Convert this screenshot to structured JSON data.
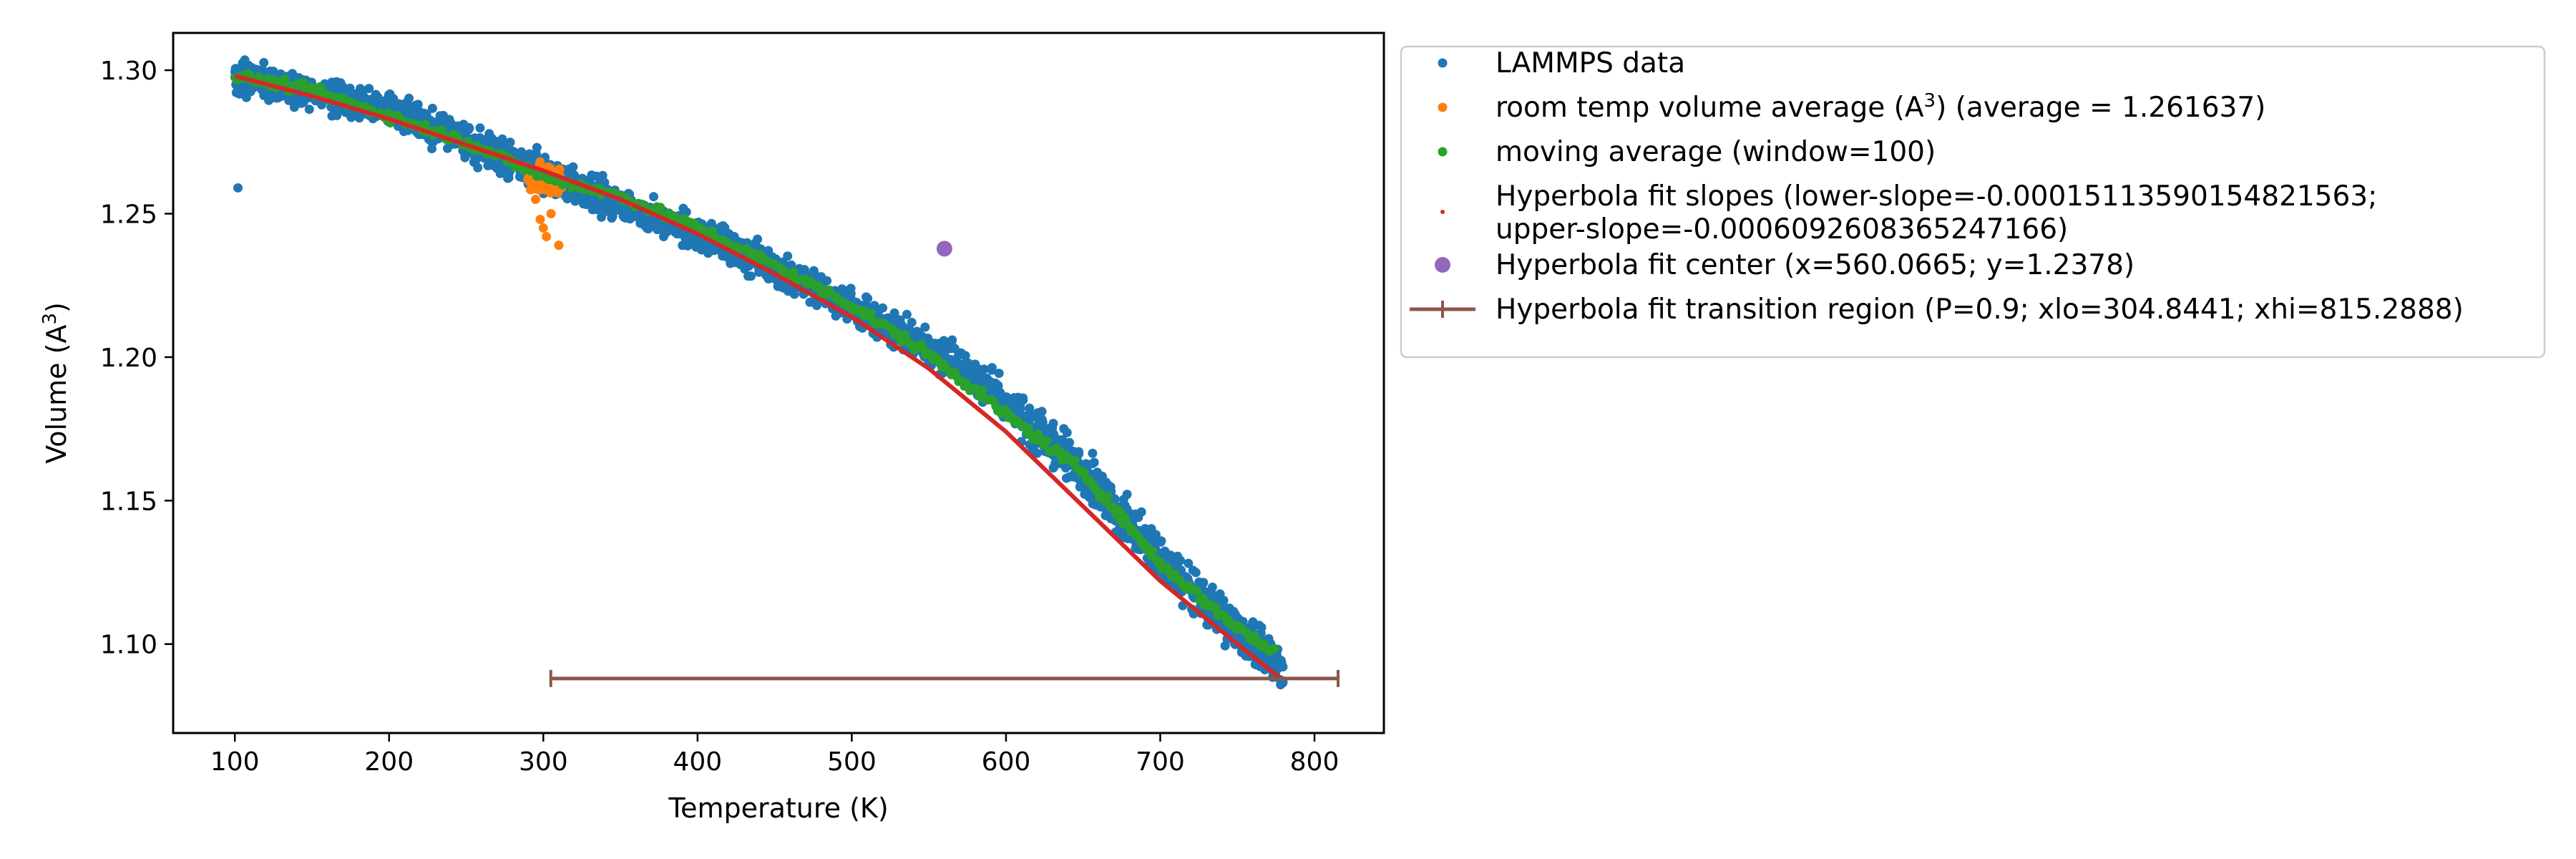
{
  "chart_data": {
    "type": "scatter",
    "xlabel": "Temperature (K)",
    "ylabel": "Volume (A³)",
    "xlim": [
      60,
      845
    ],
    "ylim": [
      1.069,
      1.313
    ],
    "xticks": [
      100,
      200,
      300,
      400,
      500,
      600,
      700,
      800
    ],
    "yticks": [
      1.1,
      1.15,
      1.2,
      1.25,
      1.3
    ],
    "ytick_labels": [
      "1.10",
      "1.15",
      "1.20",
      "1.25",
      "1.30"
    ],
    "grid": false,
    "legend_position": "outside right, top",
    "series": [
      {
        "name": "LAMMPS data",
        "marker": "point",
        "color": "#1f77b4",
        "x_range": [
          100,
          780
        ],
        "band_center": [
          [
            100,
            1.298
          ],
          [
            200,
            1.286
          ],
          [
            300,
            1.264
          ],
          [
            400,
            1.243
          ],
          [
            500,
            1.218
          ],
          [
            560,
            1.2
          ],
          [
            600,
            1.185
          ],
          [
            650,
            1.16
          ],
          [
            700,
            1.13
          ],
          [
            750,
            1.105
          ],
          [
            780,
            1.09
          ]
        ],
        "band_halfwidth": 0.006,
        "outliers": [
          [
            102,
            1.259
          ]
        ]
      },
      {
        "name": "room temp volume average (A³) (average = 1.261637)",
        "marker": "point",
        "color": "#ff7f0e",
        "x_range": [
          290,
          312
        ],
        "band_center_y": 1.262,
        "extra_points": [
          [
            298,
            1.248
          ],
          [
            300,
            1.245
          ],
          [
            302,
            1.242
          ],
          [
            305,
            1.25
          ],
          [
            310,
            1.239
          ],
          [
            295,
            1.255
          ]
        ]
      },
      {
        "name": "moving average (window=100)",
        "marker": "point",
        "color": "#2ca02c",
        "x": [
          100,
          150,
          200,
          250,
          300,
          350,
          400,
          450,
          500,
          550,
          600,
          650,
          700,
          740,
          770
        ],
        "y": [
          1.298,
          1.293,
          1.284,
          1.275,
          1.263,
          1.256,
          1.245,
          1.232,
          1.218,
          1.201,
          1.18,
          1.16,
          1.128,
          1.11,
          1.098
        ]
      },
      {
        "name": "Hyperbola fit slopes (lower-slope=-0.00015113590154821563;\nupper-slope=-0.0006092608365247166)",
        "marker": "line",
        "color": "#d62728",
        "x": [
          100,
          150,
          200,
          250,
          300,
          350,
          400,
          450,
          500,
          550,
          600,
          650,
          700,
          750,
          778
        ],
        "y": [
          1.298,
          1.291,
          1.283,
          1.274,
          1.265,
          1.255,
          1.243,
          1.229,
          1.214,
          1.196,
          1.174,
          1.148,
          1.122,
          1.1,
          1.088
        ]
      },
      {
        "name": "Hyperbola fit center (x=560.0665; y=1.2378)",
        "marker": "circle",
        "color": "#9467bd",
        "x": [
          560.0665
        ],
        "y": [
          1.2378
        ]
      },
      {
        "name": "Hyperbola fit transition region (P=0.9; xlo=304.8441; xhi=815.2888)",
        "marker": "errorbar",
        "color": "#8c564b",
        "xlo": 304.8441,
        "xhi": 815.2888,
        "y": 1.088
      }
    ],
    "legend": {
      "entries": [
        {
          "lines": [
            "LAMMPS data"
          ],
          "symbol": "point",
          "color": "#1f77b4"
        },
        {
          "lines": [
            "room temp volume average (A³) (average = 1.261637)"
          ],
          "symbol": "point",
          "color": "#ff7f0e"
        },
        {
          "lines": [
            "moving average (window=100)"
          ],
          "symbol": "point",
          "color": "#2ca02c"
        },
        {
          "lines": [
            "Hyperbola fit slopes (lower-slope=-0.00015113590154821563;",
            "upper-slope=-0.0006092608365247166)"
          ],
          "symbol": "small-point",
          "color": "#d62728"
        },
        {
          "lines": [
            "Hyperbola fit center (x=560.0665; y=1.2378)"
          ],
          "symbol": "circle",
          "color": "#9467bd"
        },
        {
          "lines": [
            "Hyperbola fit transition region (P=0.9; xlo=304.8441; xhi=815.2888)"
          ],
          "symbol": "errorbar",
          "color": "#8c564b"
        }
      ]
    }
  }
}
